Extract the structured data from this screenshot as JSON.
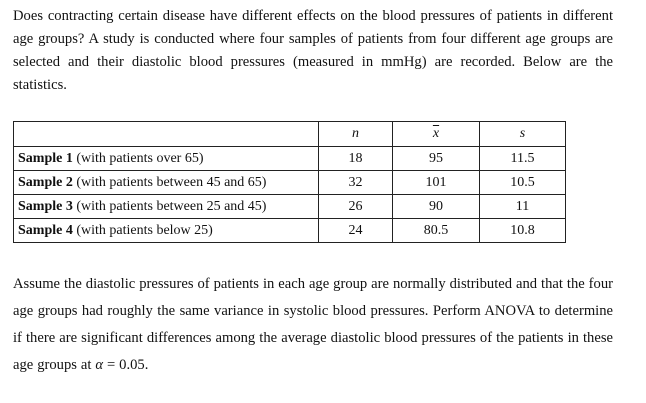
{
  "intro": "Does contracting certain disease have different effects on the blood pressures of patients in different age groups? A study is conducted where four samples of patients from four different age groups are selected and their diastolic blood pressures (measured in mmHg) are recorded. Below are the statistics.",
  "table": {
    "headers": {
      "label": "",
      "n": "n",
      "xbar": "x",
      "s": "s"
    },
    "rows": [
      {
        "name": "Sample 1",
        "desc": " (with patients over 65)",
        "n": "18",
        "xbar": "95",
        "s": "11.5"
      },
      {
        "name": "Sample 2",
        "desc": " (with patients between 45 and 65)",
        "n": "32",
        "xbar": "101",
        "s": "10.5"
      },
      {
        "name": "Sample 3",
        "desc": " (with patients between 25 and 45)",
        "n": "26",
        "xbar": "90",
        "s": "11"
      },
      {
        "name": "Sample 4",
        "desc": " (with patients below 25)",
        "n": "24",
        "xbar": "80.5",
        "s": "10.8"
      }
    ]
  },
  "outro_main": "Assume the diastolic pressures of patients in each age group are normally distributed and that the four age groups had roughly the same variance in systolic blood pressures. Perform ANOVA to determine if there are significant differences among the average diastolic blood pressures of the patients in these age groups at ",
  "alpha_symbol": "α",
  "alpha_value": " = 0.05."
}
